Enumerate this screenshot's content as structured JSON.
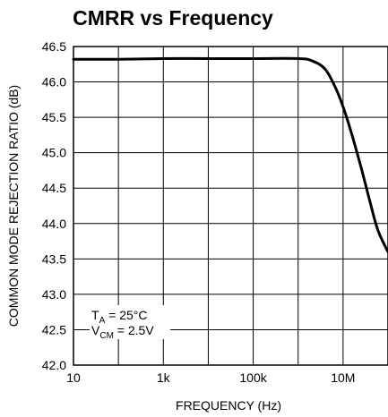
{
  "chart_data": {
    "type": "line",
    "title": "CMRR vs Frequency",
    "xlabel": "FREQUENCY (Hz)",
    "ylabel": "COMMON MODE REJECTION RATIO (dB)",
    "xscale": "log",
    "xlim": [
      10,
      100000000
    ],
    "ylim": [
      42.0,
      46.5
    ],
    "x_ticks": [
      10,
      1000,
      100000,
      10000000
    ],
    "x_tick_labels": [
      "10",
      "1k",
      "100k",
      "10M"
    ],
    "y_ticks": [
      42.0,
      42.5,
      43.0,
      43.5,
      44.0,
      44.5,
      45.0,
      45.5,
      46.0,
      46.5
    ],
    "y_tick_labels": [
      "42.0",
      "42.5",
      "43.0",
      "43.5",
      "44.0",
      "44.5",
      "45.0",
      "45.5",
      "46.0",
      "46.5"
    ],
    "grid": true,
    "series": [
      {
        "x": [
          10,
          100,
          1000,
          10000,
          100000,
          1000000,
          2000000,
          4000000,
          7000000,
          10000000,
          15000000,
          25000000,
          40000000,
          60000000,
          100000000
        ],
        "y": [
          46.32,
          46.32,
          46.33,
          46.33,
          46.33,
          46.33,
          46.3,
          46.18,
          45.9,
          45.65,
          45.3,
          44.8,
          44.3,
          43.9,
          43.6
        ]
      }
    ],
    "annotations": {
      "ta": {
        "sym": "T",
        "sub": "A",
        "rest": " = 25°C"
      },
      "vcm": {
        "sym": "V",
        "sub": "CM",
        "rest": " = 2.5V"
      }
    },
    "colors": {
      "line": "#000000",
      "grid": "#000000",
      "background": "#ffffff"
    }
  }
}
